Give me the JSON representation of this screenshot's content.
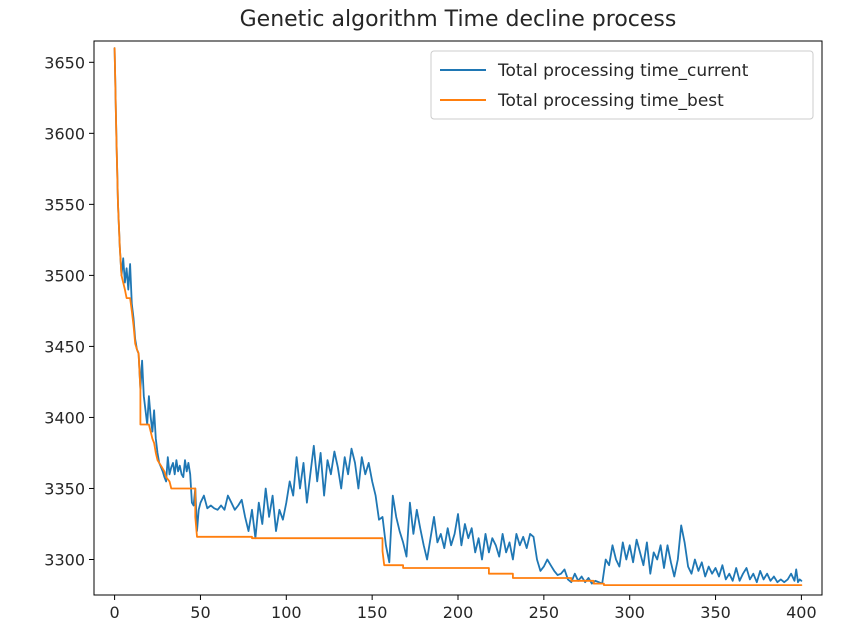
{
  "chart_data": {
    "type": "line",
    "title": "Genetic algorithm Time decline process",
    "xlabel": "",
    "ylabel": "",
    "xlim": [
      -12,
      412
    ],
    "ylim": [
      3275,
      3665
    ],
    "xticks": [
      0,
      50,
      100,
      150,
      200,
      250,
      300,
      350,
      400
    ],
    "yticks": [
      3300,
      3350,
      3400,
      3450,
      3500,
      3550,
      3600,
      3650
    ],
    "grid": false,
    "legend_position": "top-right",
    "series": [
      {
        "name": "Total processing time_current",
        "color": "#1f77b4",
        "points": [
          [
            0,
            3660
          ],
          [
            1,
            3600
          ],
          [
            2,
            3550
          ],
          [
            3,
            3520
          ],
          [
            4,
            3500
          ],
          [
            5,
            3512
          ],
          [
            6,
            3495
          ],
          [
            7,
            3505
          ],
          [
            8,
            3490
          ],
          [
            9,
            3508
          ],
          [
            10,
            3480
          ],
          [
            11,
            3470
          ],
          [
            12,
            3455
          ],
          [
            13,
            3448
          ],
          [
            14,
            3445
          ],
          [
            15,
            3420
          ],
          [
            16,
            3440
          ],
          [
            17,
            3415
          ],
          [
            18,
            3405
          ],
          [
            19,
            3395
          ],
          [
            20,
            3415
          ],
          [
            21,
            3400
          ],
          [
            22,
            3390
          ],
          [
            23,
            3405
          ],
          [
            24,
            3385
          ],
          [
            25,
            3375
          ],
          [
            26,
            3368
          ],
          [
            27,
            3365
          ],
          [
            28,
            3362
          ],
          [
            29,
            3358
          ],
          [
            30,
            3355
          ],
          [
            31,
            3372
          ],
          [
            32,
            3360
          ],
          [
            33,
            3365
          ],
          [
            34,
            3368
          ],
          [
            35,
            3360
          ],
          [
            36,
            3370
          ],
          [
            37,
            3362
          ],
          [
            38,
            3366
          ],
          [
            39,
            3360
          ],
          [
            40,
            3358
          ],
          [
            41,
            3370
          ],
          [
            42,
            3362
          ],
          [
            43,
            3368
          ],
          [
            44,
            3360
          ],
          [
            45,
            3340
          ],
          [
            46,
            3338
          ],
          [
            47,
            3350
          ],
          [
            48,
            3320
          ],
          [
            49,
            3335
          ],
          [
            50,
            3340
          ],
          [
            52,
            3345
          ],
          [
            54,
            3336
          ],
          [
            56,
            3338
          ],
          [
            58,
            3336
          ],
          [
            60,
            3335
          ],
          [
            62,
            3338
          ],
          [
            64,
            3335
          ],
          [
            66,
            3345
          ],
          [
            68,
            3340
          ],
          [
            70,
            3335
          ],
          [
            72,
            3338
          ],
          [
            74,
            3342
          ],
          [
            76,
            3330
          ],
          [
            78,
            3320
          ],
          [
            80,
            3335
          ],
          [
            82,
            3315
          ],
          [
            84,
            3340
          ],
          [
            86,
            3325
          ],
          [
            88,
            3350
          ],
          [
            90,
            3330
          ],
          [
            92,
            3345
          ],
          [
            94,
            3320
          ],
          [
            96,
            3335
          ],
          [
            98,
            3328
          ],
          [
            100,
            3340
          ],
          [
            102,
            3355
          ],
          [
            104,
            3345
          ],
          [
            106,
            3372
          ],
          [
            108,
            3350
          ],
          [
            110,
            3368
          ],
          [
            112,
            3340
          ],
          [
            114,
            3360
          ],
          [
            116,
            3380
          ],
          [
            118,
            3355
          ],
          [
            120,
            3375
          ],
          [
            122,
            3345
          ],
          [
            124,
            3370
          ],
          [
            126,
            3360
          ],
          [
            128,
            3376
          ],
          [
            130,
            3365
          ],
          [
            132,
            3350
          ],
          [
            134,
            3372
          ],
          [
            136,
            3360
          ],
          [
            138,
            3378
          ],
          [
            140,
            3368
          ],
          [
            142,
            3350
          ],
          [
            144,
            3372
          ],
          [
            146,
            3360
          ],
          [
            148,
            3368
          ],
          [
            150,
            3355
          ],
          [
            152,
            3345
          ],
          [
            154,
            3328
          ],
          [
            156,
            3330
          ],
          [
            158,
            3310
          ],
          [
            160,
            3298
          ],
          [
            162,
            3345
          ],
          [
            164,
            3330
          ],
          [
            166,
            3320
          ],
          [
            168,
            3312
          ],
          [
            170,
            3302
          ],
          [
            172,
            3340
          ],
          [
            174,
            3318
          ],
          [
            176,
            3335
          ],
          [
            178,
            3322
          ],
          [
            180,
            3310
          ],
          [
            182,
            3300
          ],
          [
            184,
            3315
          ],
          [
            186,
            3330
          ],
          [
            188,
            3312
          ],
          [
            190,
            3318
          ],
          [
            192,
            3308
          ],
          [
            194,
            3322
          ],
          [
            196,
            3310
          ],
          [
            198,
            3318
          ],
          [
            200,
            3332
          ],
          [
            202,
            3310
          ],
          [
            204,
            3325
          ],
          [
            206,
            3315
          ],
          [
            208,
            3322
          ],
          [
            210,
            3305
          ],
          [
            212,
            3315
          ],
          [
            214,
            3300
          ],
          [
            216,
            3318
          ],
          [
            218,
            3305
          ],
          [
            220,
            3315
          ],
          [
            222,
            3310
          ],
          [
            224,
            3302
          ],
          [
            226,
            3318
          ],
          [
            228,
            3305
          ],
          [
            230,
            3312
          ],
          [
            232,
            3300
          ],
          [
            234,
            3318
          ],
          [
            236,
            3310
          ],
          [
            238,
            3316
          ],
          [
            240,
            3308
          ],
          [
            242,
            3318
          ],
          [
            244,
            3316
          ],
          [
            246,
            3300
          ],
          [
            248,
            3292
          ],
          [
            250,
            3295
          ],
          [
            252,
            3300
          ],
          [
            254,
            3296
          ],
          [
            256,
            3292
          ],
          [
            258,
            3289
          ],
          [
            260,
            3290
          ],
          [
            262,
            3293
          ],
          [
            264,
            3286
          ],
          [
            266,
            3284
          ],
          [
            268,
            3290
          ],
          [
            270,
            3285
          ],
          [
            272,
            3288
          ],
          [
            274,
            3284
          ],
          [
            276,
            3287
          ],
          [
            278,
            3283
          ],
          [
            280,
            3285
          ],
          [
            282,
            3284
          ],
          [
            284,
            3283
          ],
          [
            286,
            3300
          ],
          [
            288,
            3296
          ],
          [
            290,
            3310
          ],
          [
            292,
            3300
          ],
          [
            294,
            3295
          ],
          [
            296,
            3312
          ],
          [
            298,
            3300
          ],
          [
            300,
            3310
          ],
          [
            302,
            3298
          ],
          [
            304,
            3314
          ],
          [
            306,
            3305
          ],
          [
            308,
            3296
          ],
          [
            310,
            3312
          ],
          [
            312,
            3290
          ],
          [
            314,
            3305
          ],
          [
            316,
            3300
          ],
          [
            318,
            3310
          ],
          [
            320,
            3294
          ],
          [
            322,
            3310
          ],
          [
            324,
            3298
          ],
          [
            326,
            3288
          ],
          [
            328,
            3300
          ],
          [
            330,
            3324
          ],
          [
            332,
            3312
          ],
          [
            334,
            3295
          ],
          [
            336,
            3290
          ],
          [
            338,
            3300
          ],
          [
            340,
            3292
          ],
          [
            342,
            3298
          ],
          [
            344,
            3288
          ],
          [
            346,
            3295
          ],
          [
            348,
            3290
          ],
          [
            350,
            3294
          ],
          [
            352,
            3288
          ],
          [
            354,
            3296
          ],
          [
            356,
            3286
          ],
          [
            358,
            3290
          ],
          [
            360,
            3285
          ],
          [
            362,
            3294
          ],
          [
            364,
            3285
          ],
          [
            366,
            3290
          ],
          [
            368,
            3294
          ],
          [
            370,
            3286
          ],
          [
            372,
            3290
          ],
          [
            374,
            3284
          ],
          [
            376,
            3292
          ],
          [
            378,
            3286
          ],
          [
            380,
            3290
          ],
          [
            382,
            3285
          ],
          [
            384,
            3288
          ],
          [
            386,
            3284
          ],
          [
            388,
            3286
          ],
          [
            390,
            3284
          ],
          [
            392,
            3286
          ],
          [
            394,
            3290
          ],
          [
            396,
            3285
          ],
          [
            397,
            3293
          ],
          [
            398,
            3284
          ],
          [
            399,
            3286
          ],
          [
            400,
            3285
          ]
        ]
      },
      {
        "name": "Total processing time_best",
        "color": "#ff7f0e",
        "points": [
          [
            0,
            3660
          ],
          [
            1,
            3600
          ],
          [
            2,
            3550
          ],
          [
            3,
            3520
          ],
          [
            4,
            3500
          ],
          [
            5,
            3495
          ],
          [
            6,
            3490
          ],
          [
            7,
            3484
          ],
          [
            8,
            3484
          ],
          [
            9,
            3484
          ],
          [
            10,
            3475
          ],
          [
            11,
            3465
          ],
          [
            12,
            3452
          ],
          [
            13,
            3448
          ],
          [
            14,
            3445
          ],
          [
            15,
            3420
          ],
          [
            15,
            3395
          ],
          [
            20,
            3395
          ],
          [
            21,
            3390
          ],
          [
            22,
            3385
          ],
          [
            23,
            3382
          ],
          [
            24,
            3375
          ],
          [
            25,
            3370
          ],
          [
            27,
            3366
          ],
          [
            29,
            3362
          ],
          [
            30,
            3358
          ],
          [
            32,
            3355
          ],
          [
            33,
            3350
          ],
          [
            47,
            3350
          ],
          [
            47,
            3330
          ],
          [
            48,
            3316
          ],
          [
            80,
            3316
          ],
          [
            80,
            3315
          ],
          [
            156,
            3315
          ],
          [
            156,
            3306
          ],
          [
            157,
            3296
          ],
          [
            168,
            3296
          ],
          [
            168,
            3294
          ],
          [
            218,
            3294
          ],
          [
            218,
            3290
          ],
          [
            232,
            3290
          ],
          [
            232,
            3287
          ],
          [
            266,
            3287
          ],
          [
            266,
            3285
          ],
          [
            279,
            3285
          ],
          [
            279,
            3283
          ],
          [
            285,
            3283
          ],
          [
            285,
            3282
          ],
          [
            400,
            3282
          ]
        ]
      }
    ]
  }
}
